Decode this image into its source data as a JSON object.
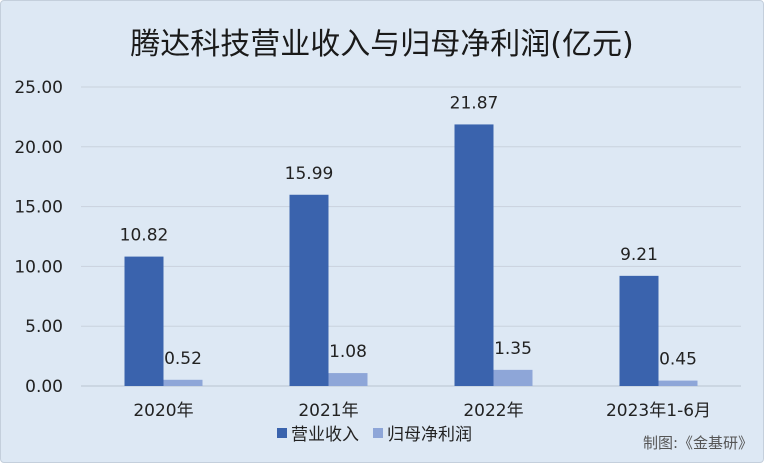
{
  "chart_data": {
    "type": "bar",
    "title": "腾达科技营业收入与归母净利润(亿元)",
    "categories": [
      "2020年",
      "2021年",
      "2022年",
      "2023年1-6月"
    ],
    "series": [
      {
        "name": "营业收入",
        "values": [
          10.82,
          15.99,
          21.87,
          9.21
        ],
        "color": "#3a63ad"
      },
      {
        "name": "归母净利润",
        "values": [
          0.52,
          1.08,
          1.35,
          0.45
        ],
        "color": "#8ea6d8"
      }
    ],
    "ylim": [
      0,
      25
    ],
    "yticks": [
      "0.00",
      "5.00",
      "10.00",
      "15.00",
      "20.00",
      "25.00"
    ],
    "grid": true,
    "legend_position": "bottom"
  },
  "credit": "制图:《金基研》"
}
